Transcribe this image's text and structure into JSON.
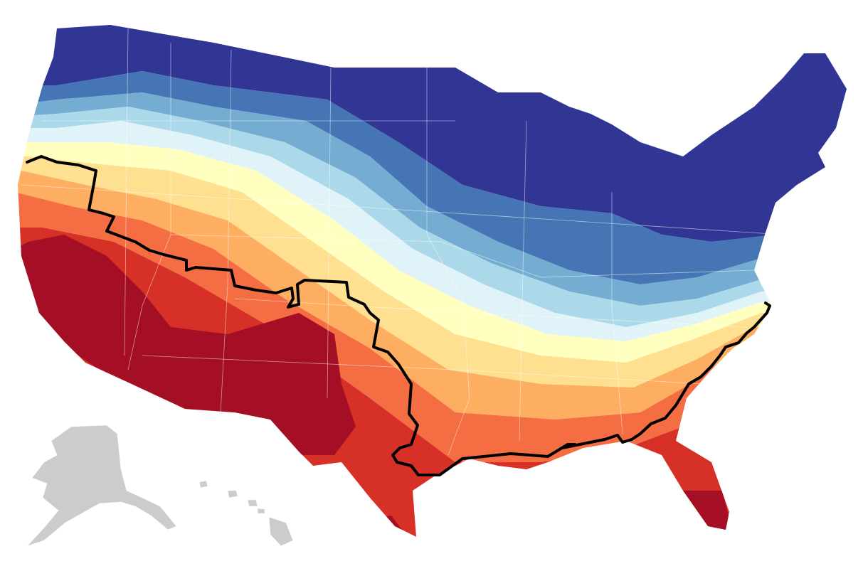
{
  "map": {
    "colors": {
      "dark_red": "#a50f26",
      "red": "#d73027",
      "orange_red": "#f46d43",
      "orange": "#fdae61",
      "light_orange": "#fee090",
      "pale_yellow": "#ffffbf",
      "pale_blue": "#e0f3f8",
      "light_blue": "#abd9e9",
      "blue": "#74add1",
      "mid_blue": "#4575b4",
      "dark_blue": "#313695",
      "inset_gray": "#cccccc",
      "boundary_line": "#000000"
    },
    "layers": [
      {
        "name": "contiguous-us-choropleth",
        "colored": true
      },
      {
        "name": "alaska-inset",
        "colored": false
      },
      {
        "name": "hawaii-inset",
        "colored": false
      },
      {
        "name": "highlighted-boundary-line",
        "colored": true
      }
    ]
  }
}
